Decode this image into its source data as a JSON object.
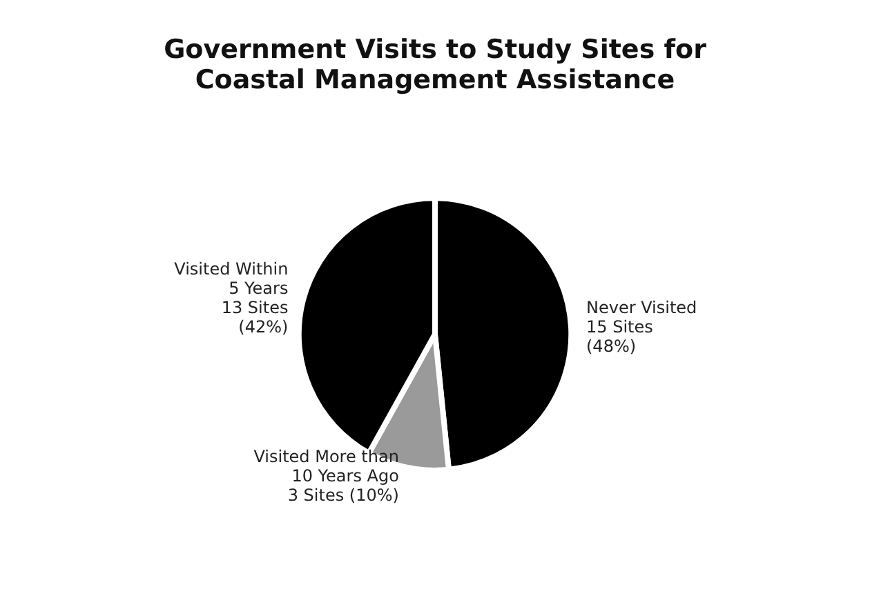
{
  "chart_data": {
    "type": "pie",
    "title": "Government Visits to Study Sites for\nCoastal Management Assistance",
    "categories": [
      "Never Visited",
      "Visited More than\n10 Years Ago",
      "Visited Within\n5 Years"
    ],
    "values": [
      15,
      3,
      13
    ],
    "colors": [
      "#000000",
      "#9a9a9a",
      "#000000"
    ],
    "value_labels": [
      "15 Sites\n(48%)",
      "3 Sites (10%)",
      "13 Sites\n(42%)"
    ],
    "legend": false
  }
}
